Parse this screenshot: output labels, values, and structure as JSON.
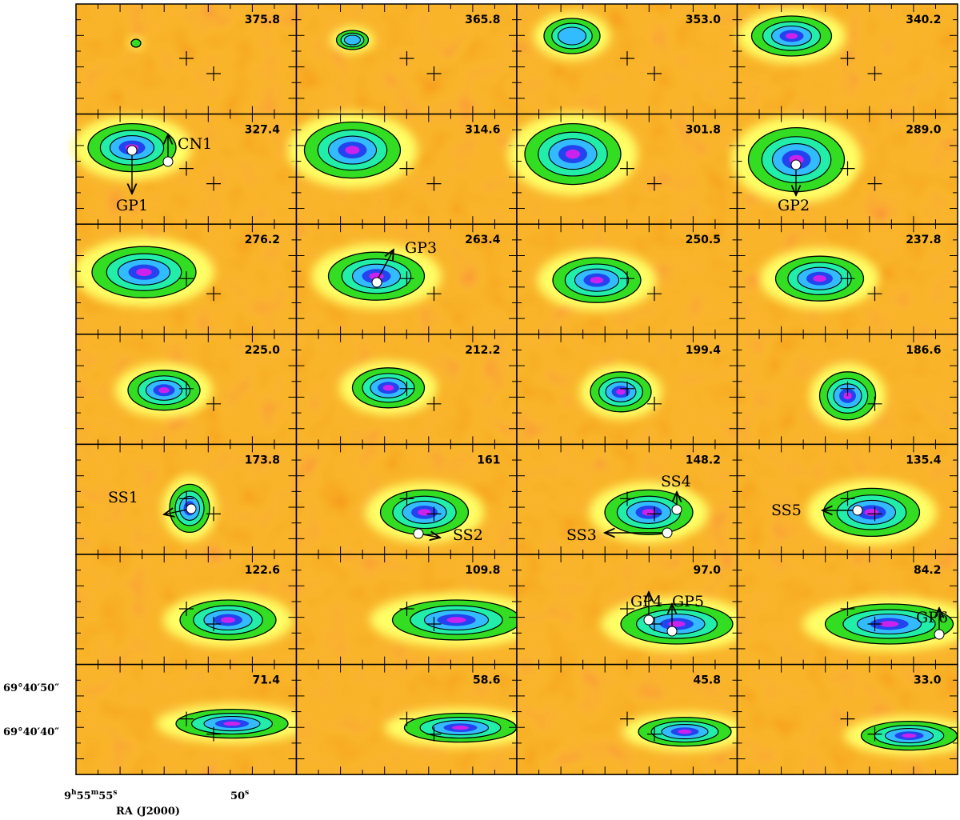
{
  "panels": [
    {
      "label": "375.8"
    },
    {
      "label": "365.8"
    },
    {
      "label": "353.0"
    },
    {
      "label": "340.2"
    },
    {
      "label": "327.4"
    },
    {
      "label": "314.6"
    },
    {
      "label": "301.8"
    },
    {
      "label": "289.0"
    },
    {
      "label": "276.2"
    },
    {
      "label": "263.4"
    },
    {
      "label": "250.5"
    },
    {
      "label": "237.8"
    },
    {
      "label": "225.0"
    },
    {
      "label": "212.2"
    },
    {
      "label": "199.4"
    },
    {
      "label": "186.6"
    },
    {
      "label": "173.8"
    },
    {
      "label": "161"
    },
    {
      "label": "148.2"
    },
    {
      "label": "135.4"
    },
    {
      "label": "122.6"
    },
    {
      "label": "109.8"
    },
    {
      "label": "97.0"
    },
    {
      "label": "84.2"
    },
    {
      "label": "71.4"
    },
    {
      "label": "58.6"
    },
    {
      "label": "45.8"
    },
    {
      "label": "33.0"
    }
  ],
  "annotations": [
    "CN1",
    "GP1",
    "GP2",
    "GP3",
    "SS1",
    "SS2",
    "SS3",
    "SS4",
    "SS5",
    "GP4",
    "GP5",
    "GP6"
  ],
  "y_ticks": [
    "69°40′50″",
    "69°40′40″"
  ],
  "x_ticks": [
    [
      "9",
      "h",
      "55",
      "m",
      "55",
      "s"
    ],
    [
      "50",
      "s"
    ]
  ],
  "x_label": "RA (J2000)"
}
